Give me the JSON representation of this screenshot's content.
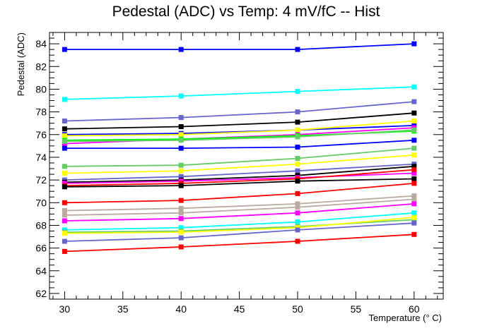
{
  "chart_data": {
    "type": "line",
    "title": "Pedestal (ADC) vs Temp: 4 mV/fC -- Hist",
    "xlabel": "Temperature (° C)",
    "ylabel": "Pedestal (ADC)",
    "xlim": [
      28.7,
      62.5
    ],
    "ylim": [
      61.5,
      85.0
    ],
    "x_ticks": [
      30,
      35,
      40,
      45,
      50,
      55,
      60
    ],
    "y_ticks": [
      62,
      64,
      66,
      68,
      70,
      72,
      74,
      76,
      78,
      80,
      82,
      84
    ],
    "x": [
      30,
      40,
      50,
      60
    ],
    "grid": false,
    "legend": "none",
    "series": [
      {
        "color": "#0000ff",
        "values": [
          83.5,
          83.5,
          83.5,
          84.0
        ]
      },
      {
        "color": "#00ffff",
        "values": [
          79.1,
          79.4,
          79.8,
          80.2
        ]
      },
      {
        "color": "#6666cc",
        "values": [
          77.2,
          77.5,
          78.0,
          78.9
        ]
      },
      {
        "color": "#000000",
        "values": [
          76.5,
          76.7,
          77.1,
          77.9
        ]
      },
      {
        "color": "#0000ff",
        "values": [
          76.0,
          76.1,
          76.4,
          76.8
        ]
      },
      {
        "color": "#ffff00",
        "values": [
          75.9,
          76.0,
          76.4,
          77.2
        ]
      },
      {
        "color": "#ff00ff",
        "values": [
          75.2,
          75.6,
          76.0,
          76.6
        ]
      },
      {
        "color": "#00ff00",
        "values": [
          75.5,
          75.6,
          75.9,
          76.3
        ]
      },
      {
        "color": "#66cc66",
        "values": [
          75.4,
          75.5,
          75.8,
          76.4
        ]
      },
      {
        "color": "#0000ff",
        "values": [
          74.8,
          74.8,
          74.9,
          75.5
        ]
      },
      {
        "color": "#66cc66",
        "values": [
          73.2,
          73.3,
          73.9,
          74.8
        ]
      },
      {
        "color": "#ffff00",
        "values": [
          72.6,
          72.8,
          73.4,
          74.2
        ]
      },
      {
        "color": "#6666cc",
        "values": [
          72.0,
          72.3,
          72.8,
          73.4
        ]
      },
      {
        "color": "#000000",
        "values": [
          71.8,
          72.0,
          72.4,
          73.2
        ]
      },
      {
        "color": "#ff00ff",
        "values": [
          71.7,
          71.9,
          72.2,
          72.6
        ]
      },
      {
        "color": "#ff0000",
        "values": [
          71.5,
          71.7,
          72.1,
          72.9
        ]
      },
      {
        "color": "#000000",
        "values": [
          71.4,
          71.5,
          71.9,
          72.1
        ]
      },
      {
        "color": "#ff0000",
        "values": [
          70.0,
          70.2,
          70.8,
          71.7
        ]
      },
      {
        "color": "#bbaaa0",
        "values": [
          69.3,
          69.5,
          69.9,
          70.6
        ]
      },
      {
        "color": "#bbaaa0",
        "values": [
          68.9,
          69.1,
          69.6,
          70.3
        ]
      },
      {
        "color": "#ff00ff",
        "values": [
          68.4,
          68.6,
          69.1,
          69.9
        ]
      },
      {
        "color": "#00ffff",
        "values": [
          67.6,
          67.8,
          68.3,
          69.1
        ]
      },
      {
        "color": "#66cc66",
        "values": [
          67.4,
          67.5,
          67.9,
          68.5
        ]
      },
      {
        "color": "#ffff00",
        "values": [
          67.3,
          67.4,
          67.8,
          68.7
        ]
      },
      {
        "color": "#6666cc",
        "values": [
          66.6,
          66.9,
          67.6,
          68.2
        ]
      },
      {
        "color": "#ff0000",
        "values": [
          65.7,
          66.1,
          66.6,
          67.2
        ]
      }
    ]
  }
}
